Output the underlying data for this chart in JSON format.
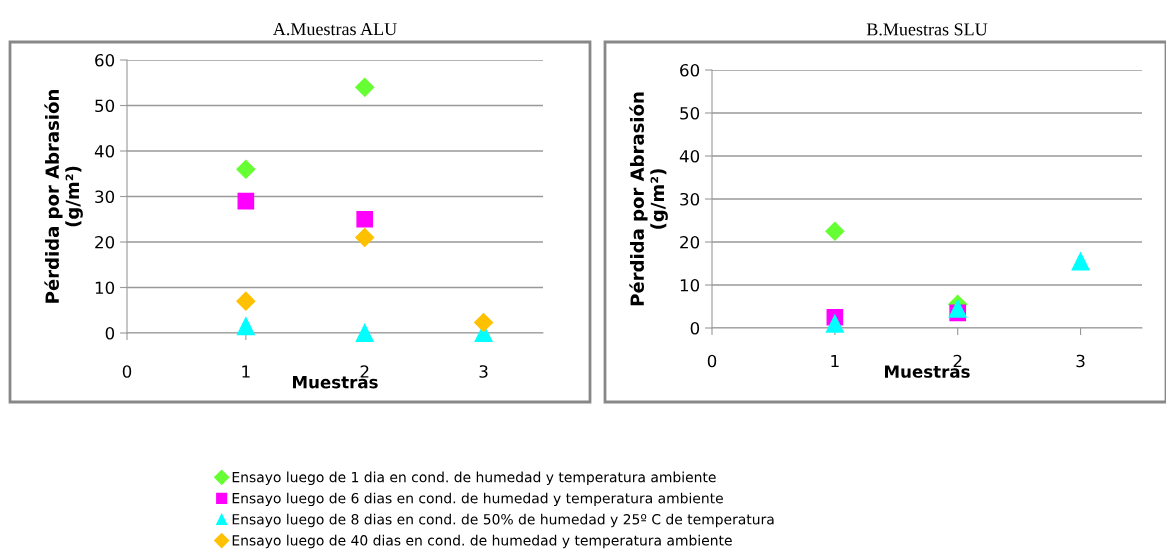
{
  "chart_data": [
    {
      "type": "scatter",
      "title": "A.Muestras ALU",
      "xlabel": "Muestras",
      "ylabel": "Pérdida por Abrasión\n(g/m²)",
      "xlim": [
        0,
        3.5
      ],
      "xticks": [
        0,
        1,
        2,
        3
      ],
      "ylim": [
        0,
        60
      ],
      "yticks": [
        0,
        10,
        20,
        30,
        40,
        50,
        60
      ],
      "grid": "y",
      "series": [
        {
          "color": "#66ff33",
          "marker": "diamond",
          "x": [
            1,
            2
          ],
          "values": [
            36,
            54
          ]
        },
        {
          "color": "#ff00ff",
          "marker": "square",
          "x": [
            1,
            2
          ],
          "values": [
            29,
            25
          ]
        },
        {
          "color": "#00ffff",
          "marker": "triangle",
          "x": [
            1,
            2,
            3
          ],
          "values": [
            1.5,
            0,
            0
          ]
        },
        {
          "color": "#ffc000",
          "marker": "diamond",
          "x": [
            1,
            2,
            3
          ],
          "values": [
            7,
            21,
            2.3
          ]
        }
      ]
    },
    {
      "type": "scatter",
      "title": "B.Muestras SLU",
      "xlabel": "Muestras",
      "ylabel": "Pérdida por Abrasión\n(g/m²)",
      "xlim": [
        0,
        3.5
      ],
      "xticks": [
        0,
        1,
        2,
        3
      ],
      "ylim": [
        0,
        60
      ],
      "yticks": [
        0,
        10,
        20,
        30,
        40,
        50,
        60
      ],
      "grid": "y",
      "legend": "bottom",
      "series": [
        {
          "name": "Ensayo luego de 1 dia en cond. de humedad y temperatura ambiente",
          "color": "#66ff33",
          "marker": "diamond",
          "x": [
            1,
            2
          ],
          "values": [
            22.5,
            5.5
          ]
        },
        {
          "name": "Ensayo luego de 6 dias en cond. de humedad y temperatura ambiente",
          "color": "#ff00ff",
          "marker": "square",
          "x": [
            1,
            2
          ],
          "values": [
            2.5,
            3.5
          ]
        },
        {
          "name": "Ensayo luego de 8 dias en cond. de 50% de humedad y 25º C de temperatura",
          "color": "#00ffff",
          "marker": "triangle",
          "x": [
            1,
            2,
            3
          ],
          "values": [
            1,
            4.5,
            15.5
          ]
        },
        {
          "name": "Ensayo luego de 40 dias en cond. de humedad y temperatura ambiente",
          "color": "#ffc000",
          "marker": "diamond"
        }
      ]
    }
  ]
}
